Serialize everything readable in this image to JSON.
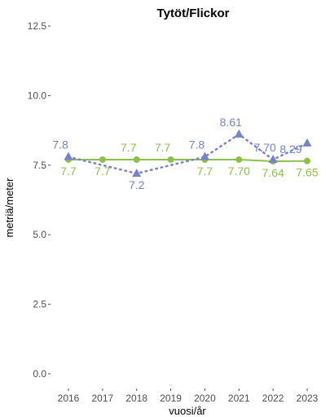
{
  "chart_data": {
    "type": "line",
    "title": "Tytöt/Flickor",
    "xlabel": "vuosi/år",
    "ylabel": "metriä/meter",
    "categories": [
      "2016",
      "2017",
      "2018",
      "2019",
      "2020",
      "2021",
      "2022",
      "2023"
    ],
    "ylim": [
      0,
      12.5
    ],
    "yticks": [
      "0.0",
      "2.5",
      "5.0",
      "7.5",
      "10.0",
      "12.5"
    ],
    "ytick_values": [
      0,
      2.5,
      5,
      7.5,
      10,
      12.5
    ],
    "grid": false,
    "legend": "none",
    "series": [
      {
        "values": [
          7.7,
          7.7,
          7.7,
          7.7,
          7.7,
          7.7,
          7.64,
          7.65
        ],
        "labels": [
          "7.7",
          "7.7",
          "7.7",
          "7.7",
          "7.7",
          "7.70",
          "7.64",
          "7.65"
        ],
        "label_positions": [
          "below",
          "below",
          "above",
          "above",
          "below",
          "below",
          "below",
          "below"
        ],
        "color": "#8dc04a",
        "line_style": "solid",
        "marker": "circle"
      },
      {
        "values": [
          7.8,
          null,
          7.2,
          null,
          7.8,
          8.61,
          7.7,
          8.29
        ],
        "labels": [
          "7.8",
          null,
          "7.2",
          null,
          "7.8",
          "8.61",
          "7.70",
          "8.29"
        ],
        "label_positions": [
          "above",
          null,
          "below",
          null,
          "above",
          "above",
          "above",
          "left"
        ],
        "color": "#7582cc",
        "line_style": "dotted",
        "marker": "triangle"
      }
    ]
  }
}
